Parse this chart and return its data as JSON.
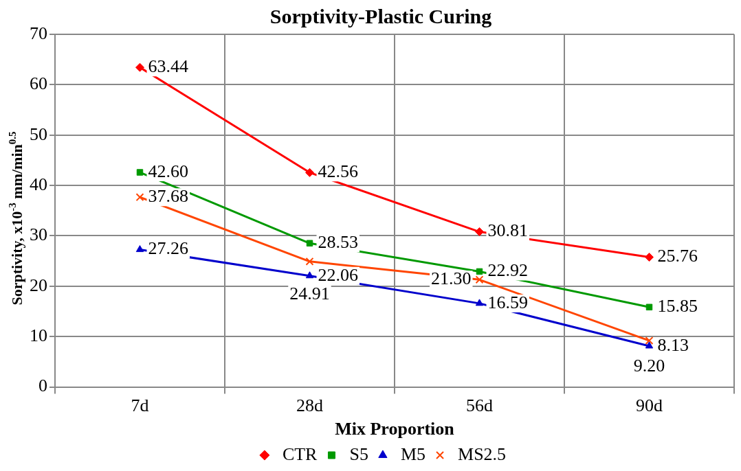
{
  "chart_data": {
    "type": "line",
    "title": "Sorptivity-Plastic Curing",
    "xlabel": "Mix Proportion",
    "ylabel": "Sorptivity, x10$^{-3}$ mm/min$^{0.5}$",
    "categories": [
      "7d",
      "28d",
      "56d",
      "90d"
    ],
    "series": [
      {
        "name": "CTR",
        "color": "#ff0000",
        "marker": "diamond",
        "values": [
          63.44,
          42.56,
          30.81,
          25.76
        ],
        "value_labels": [
          "63.44",
          "42.56",
          "30.81",
          "25.76"
        ]
      },
      {
        "name": "S5",
        "color": "#009900",
        "marker": "square",
        "values": [
          42.6,
          28.53,
          22.92,
          15.85
        ],
        "value_labels": [
          "42.60",
          "28.53",
          "22.92",
          "15.85"
        ]
      },
      {
        "name": "M5",
        "color": "#0000cc",
        "marker": "triangle",
        "values": [
          27.26,
          22.06,
          16.59,
          8.13
        ],
        "value_labels": [
          "27.26",
          "22.06",
          "16.59",
          "8.13"
        ]
      },
      {
        "name": "MS2.5",
        "color": "#ff4500",
        "marker": "cross",
        "values": [
          37.68,
          24.91,
          21.3,
          9.2
        ],
        "value_labels": [
          "37.68",
          "24.91",
          "21.30",
          "9.20"
        ]
      }
    ],
    "ylim": [
      0,
      70
    ],
    "yticks": [
      0,
      10,
      20,
      30,
      40,
      50,
      60,
      70
    ],
    "grid": true,
    "legend": "bottom"
  }
}
